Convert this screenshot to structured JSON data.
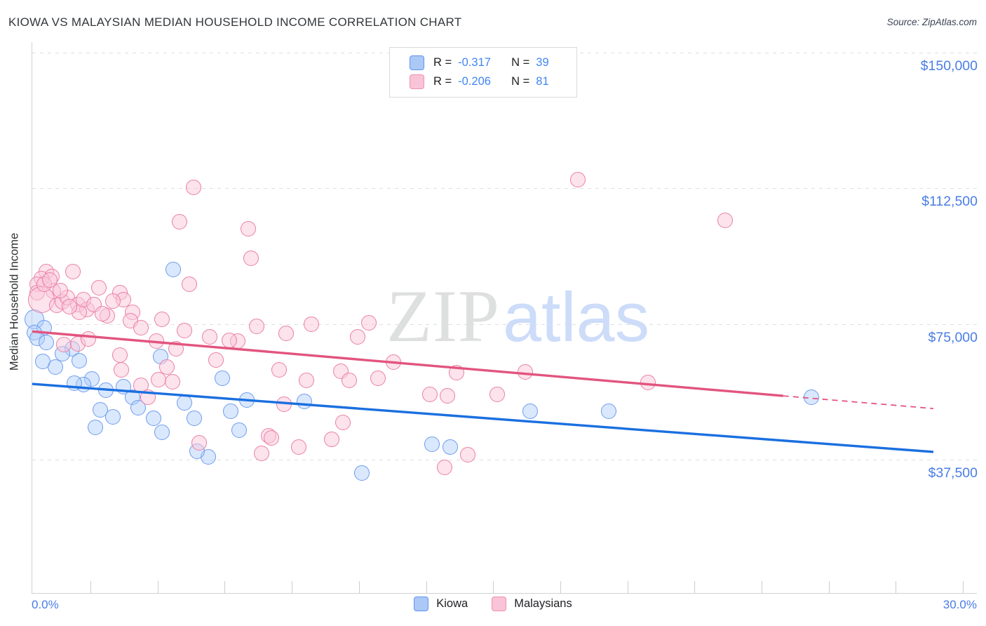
{
  "header": {
    "title": "KIOWA VS MALAYSIAN MEDIAN HOUSEHOLD INCOME CORRELATION CHART",
    "source": "Source: ZipAtlas.com"
  },
  "watermark": {
    "zip": "ZIP",
    "atlas": "atlas"
  },
  "legend_box": {
    "rows": [
      {
        "series": "Kiowa",
        "r_label": "R =",
        "r_value": "-0.317",
        "n_label": "N =",
        "n_value": "39"
      },
      {
        "series": "Malaysians",
        "r_label": "R =",
        "r_value": "-0.206",
        "n_label": "N =",
        "n_value": "81"
      }
    ]
  },
  "bottom_legend": {
    "items": [
      {
        "label": "Kiowa"
      },
      {
        "label": "Malaysians"
      }
    ]
  },
  "chart_data": {
    "type": "scatter",
    "title": "KIOWA VS MALAYSIAN MEDIAN HOUSEHOLD INCOME CORRELATION CHART",
    "xlabel": "",
    "ylabel": "Median Household Income",
    "xlim": [
      0,
      30
    ],
    "ylim": [
      600,
      152900
    ],
    "x_axis": {
      "unit": "percent",
      "tick_labels": [
        "0.0%",
        "30.0%"
      ]
    },
    "y_axis": {
      "gridlines": [
        150000,
        112500,
        75000,
        37500
      ],
      "labels": [
        "$150,000",
        "$112,500",
        "$75,000",
        "$37,500"
      ],
      "grid_style": "dashed"
    },
    "legend_position": "top-center and bottom-center",
    "series": [
      {
        "name": "Kiowa",
        "R": -0.317,
        "N": 39,
        "marker_color": "#6d9bee",
        "marker_fill": "rgba(174,203,250,0.45)",
        "points_format": "[percent, income_usd, optional_radius_px]",
        "points": [
          [
            0.07,
            76300,
            14
          ],
          [
            0.4,
            74000
          ],
          [
            0.07,
            72500
          ],
          [
            0.16,
            71100
          ],
          [
            0.47,
            69800
          ],
          [
            1.33,
            68200
          ],
          [
            0.35,
            64600
          ],
          [
            0.77,
            63000
          ],
          [
            1.56,
            64800
          ],
          [
            1.0,
            66700
          ],
          [
            1.98,
            59700
          ],
          [
            1.7,
            58200
          ],
          [
            1.4,
            58600
          ],
          [
            2.45,
            56600
          ],
          [
            3.04,
            57600
          ],
          [
            3.34,
            54700
          ],
          [
            2.26,
            51200
          ],
          [
            2.68,
            49300
          ],
          [
            3.53,
            51800
          ],
          [
            2.1,
            46400
          ],
          [
            4.04,
            48900
          ],
          [
            4.32,
            45000
          ],
          [
            5.07,
            53200
          ],
          [
            4.27,
            65900
          ],
          [
            4.69,
            90100
          ],
          [
            5.39,
            48900
          ],
          [
            6.33,
            59900
          ],
          [
            7.14,
            53900
          ],
          [
            9.06,
            53500
          ],
          [
            6.61,
            50800
          ],
          [
            6.89,
            45600
          ],
          [
            5.86,
            38300
          ],
          [
            5.49,
            39800
          ],
          [
            10.97,
            33800
          ],
          [
            16.58,
            50800
          ],
          [
            19.19,
            50800
          ],
          [
            25.94,
            54700
          ],
          [
            13.31,
            41700
          ],
          [
            13.92,
            41000
          ]
        ]
      },
      {
        "name": "Malaysians",
        "R": -0.206,
        "N": 81,
        "marker_color": "#ea7fa5",
        "marker_fill": "rgba(249,199,217,0.5)",
        "points_format": "[percent, income_usd, optional_radius_px]",
        "points": [
          [
            0.47,
            89500
          ],
          [
            0.65,
            88100
          ],
          [
            0.3,
            87600
          ],
          [
            0.16,
            86000
          ],
          [
            0.16,
            83700
          ],
          [
            0.7,
            84100
          ],
          [
            1.35,
            89500
          ],
          [
            0.3,
            81800,
            19
          ],
          [
            0.82,
            80200
          ],
          [
            1.0,
            81200
          ],
          [
            1.17,
            82200
          ],
          [
            1.52,
            80400
          ],
          [
            1.82,
            78900
          ],
          [
            1.56,
            78300
          ],
          [
            2.22,
            85000
          ],
          [
            2.5,
            77300
          ],
          [
            2.92,
            83700
          ],
          [
            3.04,
            81800
          ],
          [
            3.34,
            78300
          ],
          [
            3.27,
            75900
          ],
          [
            3.62,
            74000
          ],
          [
            0.4,
            86000
          ],
          [
            0.58,
            87200
          ],
          [
            0.93,
            84300
          ],
          [
            1.24,
            79700
          ],
          [
            1.7,
            81800
          ],
          [
            2.05,
            80400
          ],
          [
            2.68,
            81400
          ],
          [
            2.33,
            77900
          ],
          [
            4.13,
            70200
          ],
          [
            4.79,
            68200
          ],
          [
            6.84,
            70200
          ],
          [
            12.02,
            64400
          ],
          [
            5.37,
            112700
          ],
          [
            4.9,
            103200
          ],
          [
            7.19,
            101300
          ],
          [
            7.28,
            93200
          ],
          [
            5.23,
            86000
          ],
          [
            4.32,
            76300
          ],
          [
            5.07,
            73100
          ],
          [
            5.91,
            71500
          ],
          [
            6.56,
            70500
          ],
          [
            7.47,
            74400
          ],
          [
            8.45,
            72300
          ],
          [
            9.29,
            75000
          ],
          [
            11.21,
            75400
          ],
          [
            10.83,
            71500
          ],
          [
            18.16,
            114800
          ],
          [
            23.07,
            103600
          ],
          [
            14.13,
            61500
          ],
          [
            16.41,
            61700
          ],
          [
            13.24,
            55500
          ],
          [
            13.82,
            55100
          ],
          [
            15.48,
            55500
          ],
          [
            20.5,
            58800
          ],
          [
            6.12,
            65100
          ],
          [
            8.22,
            62400
          ],
          [
            9.13,
            59300
          ],
          [
            10.27,
            62000
          ],
          [
            10.55,
            59300
          ],
          [
            11.51,
            59900
          ],
          [
            8.38,
            52800
          ],
          [
            10.34,
            47700
          ],
          [
            7.87,
            44100
          ],
          [
            7.96,
            43500
          ],
          [
            9.97,
            43100
          ],
          [
            8.87,
            41000
          ],
          [
            7.63,
            39200
          ],
          [
            1.05,
            69200
          ],
          [
            1.52,
            69400
          ],
          [
            1.87,
            70900
          ],
          [
            2.92,
            66300
          ],
          [
            2.97,
            62400
          ],
          [
            4.48,
            63000
          ],
          [
            3.62,
            58000
          ],
          [
            4.2,
            59500
          ],
          [
            3.85,
            54700
          ],
          [
            4.67,
            59000
          ],
          [
            14.5,
            38900
          ],
          [
            13.73,
            35400
          ],
          [
            5.56,
            42100
          ]
        ]
      }
    ],
    "trend_lines": [
      {
        "series": "Kiowa",
        "style": "solid",
        "color": "#1a6fe0",
        "x": [
          0,
          30
        ],
        "y": [
          58400,
          39600
        ]
      },
      {
        "series": "Malaysians",
        "style": "solid",
        "color": "#e2547e",
        "x": [
          0,
          25
        ],
        "y": [
          72900,
          55100
        ]
      },
      {
        "series": "Malaysians",
        "style": "dashed",
        "color": "#e2547e",
        "x": [
          25,
          30
        ],
        "y": [
          55100,
          51600
        ]
      }
    ]
  }
}
